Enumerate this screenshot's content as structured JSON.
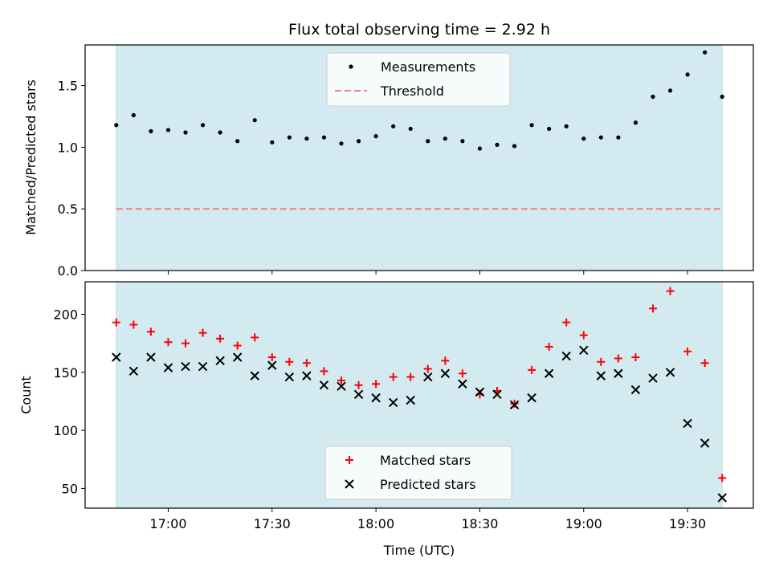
{
  "chart_data": [
    {
      "type": "scatter",
      "title": "Flux total observing time = 2.92 h",
      "ylabel": "Matched/Predicted stars",
      "ylim": [
        0,
        1.83
      ],
      "yticks": [
        "0.0",
        "0.5",
        "1.0",
        "1.5"
      ],
      "ytick_values": [
        0,
        0.5,
        1.0,
        1.5
      ],
      "observing_window": [
        "16:45",
        "19:40"
      ],
      "shade_color": "#d3eaf1",
      "legend_position": "upper center",
      "threshold": {
        "name": "Threshold",
        "value": 0.5,
        "color": "#f08080"
      },
      "series": [
        {
          "name": "Measurements",
          "color": "#000000",
          "x": [
            "16:45",
            "16:50",
            "16:55",
            "17:00",
            "17:05",
            "17:10",
            "17:15",
            "17:20",
            "17:25",
            "17:30",
            "17:35",
            "17:40",
            "17:45",
            "17:50",
            "17:55",
            "18:00",
            "18:05",
            "18:10",
            "18:15",
            "18:20",
            "18:25",
            "18:30",
            "18:35",
            "18:40",
            "18:45",
            "18:50",
            "18:55",
            "19:00",
            "19:05",
            "19:10",
            "19:15",
            "19:20",
            "19:25",
            "19:30",
            "19:35",
            "19:40"
          ],
          "y": [
            1.18,
            1.26,
            1.13,
            1.14,
            1.12,
            1.18,
            1.12,
            1.05,
            1.22,
            1.04,
            1.08,
            1.07,
            1.08,
            1.03,
            1.05,
            1.09,
            1.17,
            1.15,
            1.05,
            1.07,
            1.05,
            0.99,
            1.02,
            1.01,
            1.18,
            1.15,
            1.17,
            1.07,
            1.08,
            1.08,
            1.2,
            1.41,
            1.46,
            1.59,
            1.77,
            1.41
          ]
        }
      ]
    },
    {
      "type": "scatter",
      "xlabel": "Time (UTC)",
      "ylabel": "Count",
      "ylim": [
        33,
        228
      ],
      "yticks": [
        "50",
        "100",
        "150",
        "200"
      ],
      "ytick_values": [
        50,
        100,
        150,
        200
      ],
      "xtick_labels": [
        "17:00",
        "17:30",
        "18:00",
        "18:30",
        "19:00",
        "19:30"
      ],
      "xtick_values": [
        "17:00",
        "17:30",
        "18:00",
        "18:30",
        "19:00",
        "19:30"
      ],
      "xlim": [
        "16:36",
        "19:49"
      ],
      "legend_position": "lower center",
      "series": [
        {
          "name": "Matched stars",
          "color": "#ff0000",
          "marker": "plus",
          "x": [
            "16:45",
            "16:50",
            "16:55",
            "17:00",
            "17:05",
            "17:10",
            "17:15",
            "17:20",
            "17:25",
            "17:30",
            "17:35",
            "17:40",
            "17:45",
            "17:50",
            "17:55",
            "18:00",
            "18:05",
            "18:10",
            "18:15",
            "18:20",
            "18:25",
            "18:30",
            "18:35",
            "18:40",
            "18:45",
            "18:50",
            "18:55",
            "19:00",
            "19:05",
            "19:10",
            "19:15",
            "19:20",
            "19:25",
            "19:30",
            "19:35",
            "19:40"
          ],
          "y": [
            193,
            191,
            185,
            176,
            175,
            184,
            179,
            173,
            180,
            163,
            159,
            158,
            151,
            143,
            139,
            140,
            146,
            146,
            153,
            160,
            149,
            131,
            134,
            123,
            152,
            172,
            193,
            182,
            159,
            162,
            163,
            205,
            220,
            168,
            158,
            59
          ]
        },
        {
          "name": "Predicted stars",
          "color": "#000000",
          "marker": "x",
          "x": [
            "16:45",
            "16:50",
            "16:55",
            "17:00",
            "17:05",
            "17:10",
            "17:15",
            "17:20",
            "17:25",
            "17:30",
            "17:35",
            "17:40",
            "17:45",
            "17:50",
            "17:55",
            "18:00",
            "18:05",
            "18:10",
            "18:15",
            "18:20",
            "18:25",
            "18:30",
            "18:35",
            "18:40",
            "18:45",
            "18:50",
            "18:55",
            "19:00",
            "19:05",
            "19:10",
            "19:15",
            "19:20",
            "19:25",
            "19:30",
            "19:35",
            "19:40"
          ],
          "y": [
            163,
            151,
            163,
            154,
            155,
            155,
            160,
            163,
            147,
            156,
            146,
            147,
            139,
            138,
            131,
            128,
            124,
            126,
            146,
            149,
            140,
            133,
            131,
            122,
            128,
            149,
            164,
            169,
            147,
            149,
            135,
            145,
            150,
            106,
            89,
            42
          ]
        }
      ]
    }
  ]
}
